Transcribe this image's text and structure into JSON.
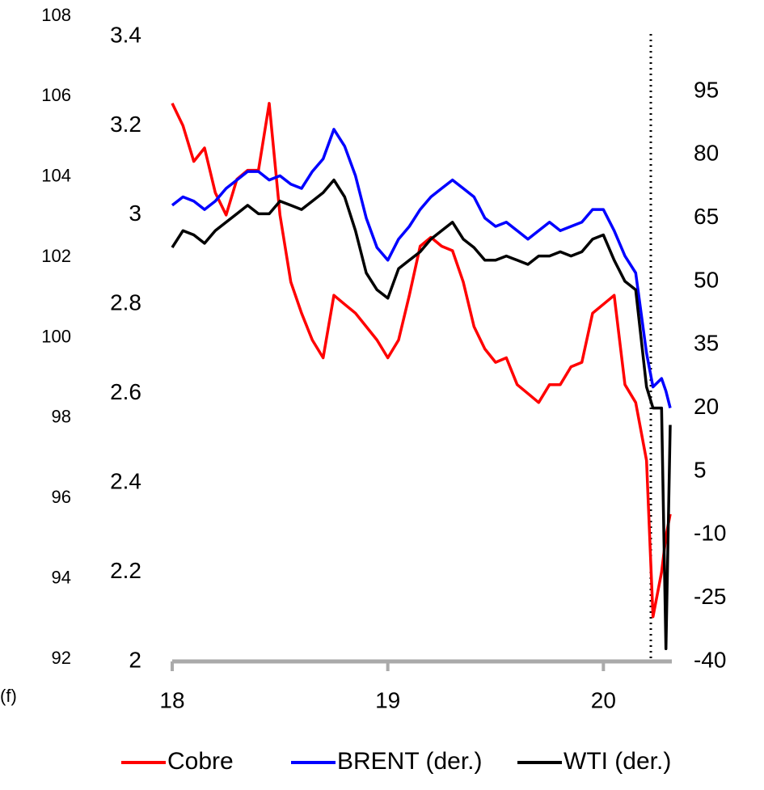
{
  "chart_data": {
    "type": "line",
    "x": [
      18.0,
      18.05,
      18.1,
      18.15,
      18.2,
      18.25,
      18.3,
      18.35,
      18.4,
      18.45,
      18.5,
      18.55,
      18.6,
      18.65,
      18.7,
      18.75,
      18.8,
      18.85,
      18.9,
      18.95,
      19.0,
      19.05,
      19.1,
      19.15,
      19.2,
      19.25,
      19.3,
      19.35,
      19.4,
      19.45,
      19.5,
      19.55,
      19.6,
      19.65,
      19.7,
      19.75,
      19.8,
      19.85,
      19.9,
      19.95,
      20.0,
      20.05,
      20.1,
      20.15,
      20.2,
      20.23,
      20.27,
      20.29,
      20.31
    ],
    "series": [
      {
        "name": "Cobre",
        "color": "#ff0000",
        "axis": "y",
        "values": [
          3.25,
          3.2,
          3.12,
          3.15,
          3.05,
          3.0,
          3.08,
          3.1,
          3.1,
          3.25,
          3.0,
          2.85,
          2.78,
          2.72,
          2.68,
          2.82,
          2.8,
          2.78,
          2.75,
          2.72,
          2.68,
          2.72,
          2.82,
          2.93,
          2.95,
          2.93,
          2.92,
          2.85,
          2.75,
          2.7,
          2.67,
          2.68,
          2.62,
          2.6,
          2.58,
          2.62,
          2.62,
          2.66,
          2.67,
          2.78,
          2.8,
          2.82,
          2.62,
          2.58,
          2.45,
          2.1,
          2.2,
          2.28,
          2.33
        ]
      },
      {
        "name": "BRENT (der.)",
        "color": "#0000ff",
        "axis": "y2",
        "values": [
          68,
          70,
          69,
          67,
          69,
          72,
          74,
          76,
          76,
          74,
          75,
          73,
          72,
          76,
          79,
          86,
          82,
          75,
          65,
          58,
          55,
          60,
          63,
          67,
          70,
          72,
          74,
          72,
          70,
          65,
          63,
          64,
          62,
          60,
          62,
          64,
          62,
          63,
          64,
          67,
          67,
          62,
          56,
          52,
          33,
          25,
          27,
          24,
          20
        ]
      },
      {
        "name": "WTI (der.)",
        "color": "#000000",
        "axis": "y2",
        "values": [
          58,
          62,
          61,
          59,
          62,
          64,
          66,
          68,
          66,
          66,
          69,
          68,
          67,
          69,
          71,
          74,
          70,
          62,
          52,
          48,
          46,
          53,
          55,
          57,
          60,
          62,
          64,
          60,
          58,
          55,
          55,
          56,
          55,
          54,
          56,
          56,
          57,
          56,
          57,
          60,
          61,
          55,
          50,
          48,
          25,
          20,
          20,
          -37,
          16
        ]
      }
    ],
    "xlim": [
      18,
      20.31
    ],
    "xticks": [
      18,
      19,
      20
    ],
    "ylim": [
      2,
      3.4
    ],
    "yticks": [
      2,
      2.2,
      2.4,
      2.6,
      2.8,
      3,
      3.2,
      3.4
    ],
    "y2lim": [
      -40,
      108
    ],
    "y2ticks": [
      -40,
      -25,
      -10,
      5,
      20,
      35,
      50,
      65,
      80,
      95
    ],
    "y3lim": [
      92,
      108
    ],
    "y3ticks": [
      92,
      94,
      96,
      98,
      100,
      102,
      104,
      106,
      108
    ],
    "y3_label": "(f)",
    "vline": 20.22,
    "legend": "bottom"
  }
}
